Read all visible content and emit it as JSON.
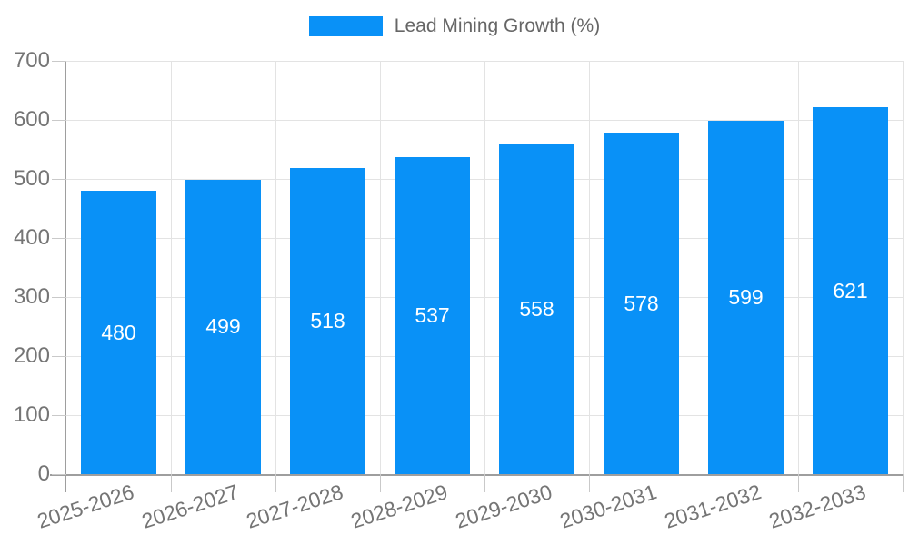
{
  "legend": {
    "label": "Lead Mining Growth (%)"
  },
  "colors": {
    "bar": "#0991f7",
    "grid": "#e3e3e3",
    "axis": "#9e9e9e",
    "tick": "#c9c9c9",
    "axis_text": "#757575",
    "legend_text": "#666666",
    "value_label": "#ffffff",
    "background": "#ffffff"
  },
  "chart_data": {
    "type": "bar",
    "title": "Lead Mining Growth (%)",
    "legend_position": "top",
    "grid": true,
    "categories": [
      "2025-2026",
      "2026-2027",
      "2027-2028",
      "2028-2029",
      "2029-2030",
      "2030-2031",
      "2031-2032",
      "2032-2033"
    ],
    "values": [
      480,
      499,
      518,
      537,
      558,
      578,
      599,
      621
    ],
    "series": [
      {
        "name": "Lead Mining Growth (%)",
        "values": [
          480,
          499,
          518,
          537,
          558,
          578,
          599,
          621
        ]
      }
    ],
    "xlabel": "",
    "ylabel": "",
    "ylim": [
      0,
      700
    ],
    "y_ticks": [
      0,
      100,
      200,
      300,
      400,
      500,
      600,
      700
    ],
    "value_labels": "inside-center",
    "x_label_rotation_deg": -18
  }
}
